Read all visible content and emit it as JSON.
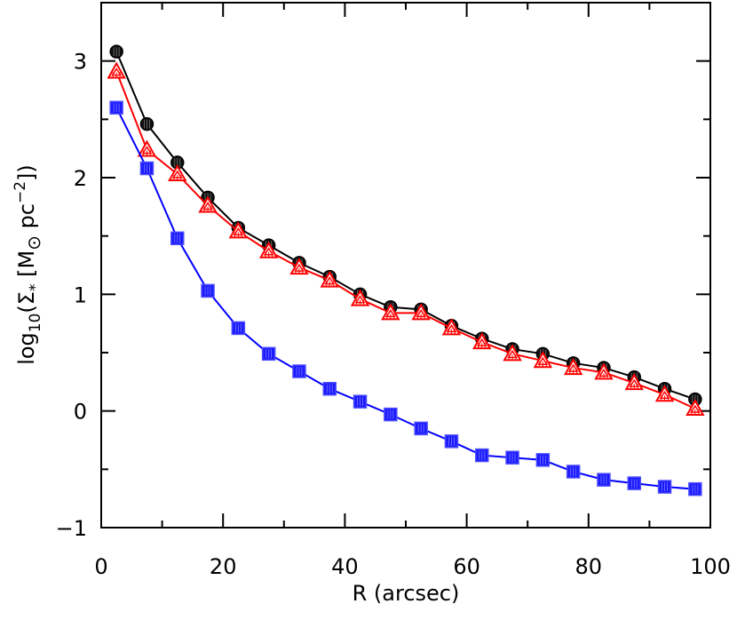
{
  "chart_data": {
    "type": "line",
    "xlabel": "R (arcsec)",
    "ylabel_parts": [
      "log",
      "10",
      "(Σ",
      "*",
      " [M",
      "⊙",
      " pc",
      "−2",
      "])"
    ],
    "xlim": [
      0,
      100
    ],
    "ylim": [
      -1,
      3.5
    ],
    "xticks": [
      0,
      20,
      40,
      60,
      80,
      100
    ],
    "yticks": [
      -1,
      0,
      1,
      2,
      3
    ],
    "ytick_labels": [
      "−1",
      "0",
      "1",
      "2",
      "3"
    ],
    "xtick_labels": [
      "0",
      "20",
      "40",
      "60",
      "80",
      "100"
    ],
    "grid": false,
    "x": [
      2.5,
      7.5,
      12.5,
      17.5,
      22.5,
      27.5,
      32.5,
      37.5,
      42.5,
      47.5,
      52.5,
      57.5,
      62.5,
      67.5,
      72.5,
      77.5,
      82.5,
      87.5,
      92.5,
      97.5
    ],
    "series": [
      {
        "color": "#000000",
        "marker": "circle",
        "values": [
          3.08,
          2.46,
          2.13,
          1.83,
          1.57,
          1.42,
          1.27,
          1.15,
          1.0,
          0.89,
          0.87,
          0.73,
          0.62,
          0.53,
          0.49,
          0.41,
          0.37,
          0.29,
          0.19,
          0.1
        ]
      },
      {
        "color": "#ff0000",
        "marker": "triangle",
        "values": [
          2.91,
          2.24,
          2.03,
          1.76,
          1.54,
          1.37,
          1.23,
          1.12,
          0.96,
          0.84,
          0.84,
          0.71,
          0.59,
          0.49,
          0.43,
          0.37,
          0.33,
          0.24,
          0.14,
          0.02
        ]
      },
      {
        "color": "#0000ff",
        "marker": "square",
        "values": [
          2.6,
          2.08,
          1.48,
          1.03,
          0.71,
          0.49,
          0.34,
          0.19,
          0.08,
          -0.03,
          -0.15,
          -0.26,
          -0.38,
          -0.4,
          -0.42,
          -0.52,
          -0.59,
          -0.62,
          -0.65,
          -0.67
        ]
      }
    ]
  }
}
